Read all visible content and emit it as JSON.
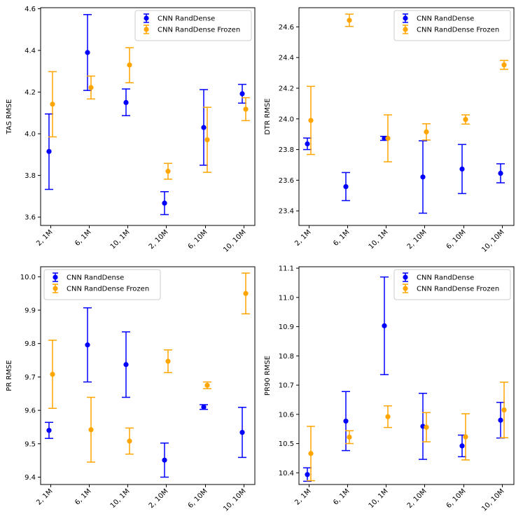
{
  "colors": {
    "blue_series": "#0000ff",
    "orange_series": "#ffa500"
  },
  "chart_data": [
    {
      "type": "errorbar",
      "title": "",
      "xlabel": "",
      "ylabel": "TAS RMSE",
      "categories": [
        "2, 1M",
        "6, 1M",
        "10, 1M",
        "2, 10M",
        "6, 10M",
        "10, 10M"
      ],
      "ylim": [
        3.56,
        4.605
      ],
      "yticks": [
        3.6,
        3.8,
        4.0,
        4.2,
        4.4,
        4.6
      ],
      "tick_decimals": 1,
      "legend": "top-right",
      "series": [
        {
          "name": "CNN RandDense",
          "color": "#0000ff",
          "values": [
            3.915,
            4.39,
            4.15,
            3.667,
            4.03,
            4.192
          ],
          "err_low": [
            3.733,
            4.208,
            4.087,
            3.612,
            3.849,
            4.147
          ],
          "err_high": [
            4.095,
            4.572,
            4.215,
            3.722,
            4.212,
            4.237
          ]
        },
        {
          "name": "CNN RandDense Frozen",
          "color": "#ffa500",
          "values": [
            4.142,
            4.222,
            4.33,
            3.82,
            3.971,
            4.118
          ],
          "err_low": [
            3.985,
            4.167,
            4.245,
            3.782,
            3.815,
            4.063
          ],
          "err_high": [
            4.298,
            4.277,
            4.413,
            3.858,
            4.127,
            4.173
          ]
        }
      ]
    },
    {
      "type": "errorbar",
      "title": "",
      "xlabel": "",
      "ylabel": "DTR RMSE",
      "categories": [
        "2, 1M",
        "6, 1M",
        "10, 1M",
        "2, 10M",
        "6, 10M",
        "10, 10M"
      ],
      "ylim": [
        23.305,
        24.725
      ],
      "yticks": [
        23.4,
        23.6,
        23.8,
        24.0,
        24.2,
        24.4,
        24.6
      ],
      "tick_decimals": 1,
      "legend": "top-right",
      "series": [
        {
          "name": "CNN RandDense",
          "color": "#0000ff",
          "values": [
            23.837,
            23.558,
            23.873,
            23.621,
            23.673,
            23.645
          ],
          "err_low": [
            23.8,
            23.467,
            23.86,
            23.385,
            23.513,
            23.583
          ],
          "err_high": [
            23.875,
            23.65,
            23.886,
            23.857,
            23.833,
            23.707
          ]
        },
        {
          "name": "CNN RandDense Frozen",
          "color": "#ffa500",
          "values": [
            23.99,
            24.643,
            23.873,
            23.915,
            23.996,
            24.352
          ],
          "err_low": [
            23.768,
            24.603,
            23.72,
            23.862,
            23.966,
            24.323
          ],
          "err_high": [
            24.212,
            24.683,
            24.026,
            23.968,
            24.026,
            24.381
          ]
        }
      ]
    },
    {
      "type": "errorbar",
      "title": "",
      "xlabel": "",
      "ylabel": "PR RMSE",
      "categories": [
        "2, 1M",
        "6, 1M",
        "10, 1M",
        "2, 10M",
        "6, 10M",
        "10, 10M"
      ],
      "ylim": [
        9.378,
        10.03
      ],
      "yticks": [
        9.4,
        9.5,
        9.6,
        9.7,
        9.8,
        9.9,
        10.0
      ],
      "tick_decimals": 1,
      "legend": "top-left",
      "series": [
        {
          "name": "CNN RandDense",
          "color": "#0000ff",
          "values": [
            9.54,
            9.796,
            9.737,
            9.451,
            9.61,
            9.534
          ],
          "err_low": [
            9.516,
            9.685,
            9.639,
            9.4,
            9.603,
            9.459
          ],
          "err_high": [
            9.564,
            9.907,
            9.835,
            9.502,
            9.617,
            9.609
          ]
        },
        {
          "name": "CNN RandDense Frozen",
          "color": "#ffa500",
          "values": [
            9.708,
            9.542,
            9.508,
            9.747,
            9.675,
            9.95
          ],
          "err_low": [
            9.606,
            9.445,
            9.469,
            9.713,
            9.665,
            9.889
          ],
          "err_high": [
            9.81,
            9.639,
            9.547,
            9.781,
            9.685,
            10.011
          ]
        }
      ]
    },
    {
      "type": "errorbar",
      "title": "",
      "xlabel": "",
      "ylabel": "PR90 RMSE",
      "categories": [
        "2, 1M",
        "6, 1M",
        "10, 1M",
        "2, 10M",
        "6, 10M",
        "10, 10M"
      ],
      "ylim": [
        10.36,
        11.105
      ],
      "yticks": [
        10.4,
        10.5,
        10.6,
        10.7,
        10.8,
        10.9,
        11.0,
        11.1
      ],
      "tick_decimals": 1,
      "legend": "top-right",
      "series": [
        {
          "name": "CNN RandDense",
          "color": "#0000ff",
          "values": [
            10.394,
            10.577,
            10.903,
            10.559,
            10.492,
            10.58
          ],
          "err_low": [
            10.371,
            10.476,
            10.736,
            10.446,
            10.455,
            10.519
          ],
          "err_high": [
            10.417,
            10.678,
            11.07,
            10.672,
            10.529,
            10.641
          ]
        },
        {
          "name": "CNN RandDense Frozen",
          "color": "#ffa500",
          "values": [
            10.466,
            10.522,
            10.592,
            10.556,
            10.523,
            10.615
          ],
          "err_low": [
            10.373,
            10.5,
            10.555,
            10.506,
            10.444,
            10.52
          ],
          "err_high": [
            10.559,
            10.544,
            10.629,
            10.606,
            10.602,
            10.71
          ]
        }
      ]
    }
  ]
}
